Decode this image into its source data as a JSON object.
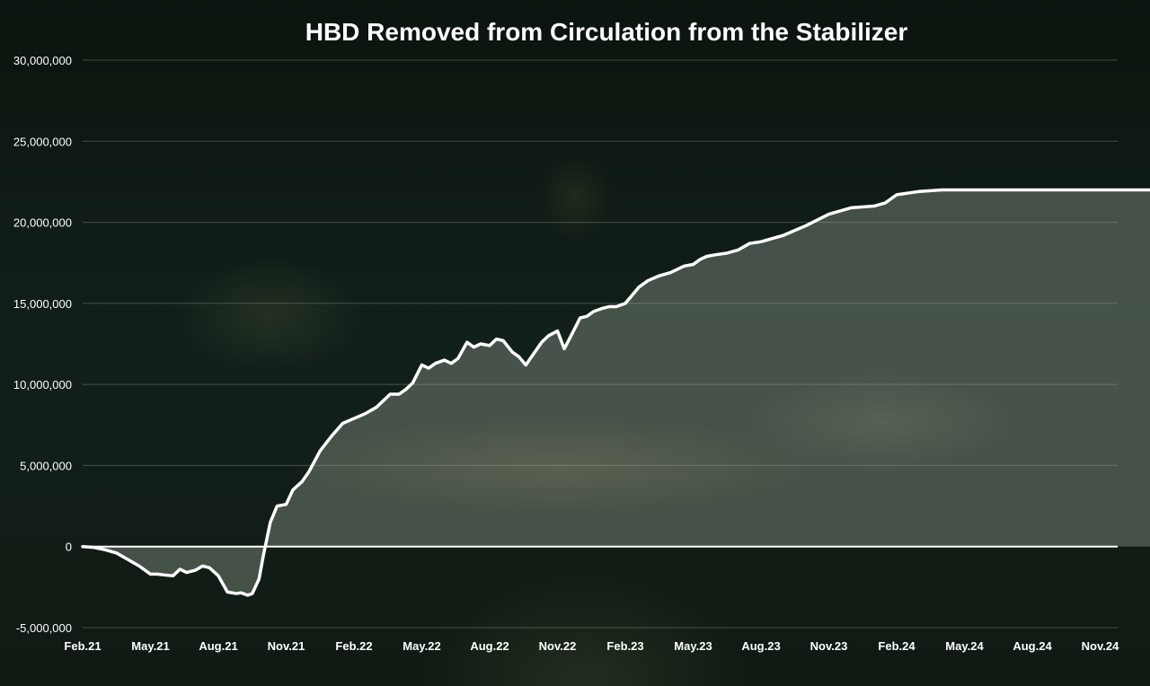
{
  "chart_data": {
    "type": "area",
    "title": "HBD Removed from Circulation from the Stabilizer",
    "xlabel": "",
    "ylabel": "",
    "ylim": [
      -5000000,
      30000000
    ],
    "yticks": [
      -5000000,
      0,
      5000000,
      10000000,
      15000000,
      20000000,
      25000000,
      30000000
    ],
    "ytick_labels": [
      "-5,000,000",
      "0",
      "5,000,000",
      "10,000,000",
      "15,000,000",
      "20,000,000",
      "25,000,000",
      "30,000,000"
    ],
    "xtick_labels": [
      "Feb.21",
      "May.21",
      "Aug.21",
      "Nov.21",
      "Feb.22",
      "May.22",
      "Aug.22",
      "Nov.22",
      "Feb.23",
      "May.23",
      "Aug.23",
      "Nov.23",
      "Feb.24",
      "May.24",
      "Aug.24",
      "Nov.24"
    ],
    "grid": true,
    "legend": "none",
    "series": [
      {
        "color": "#ffffff",
        "fill": "#b8c2b0",
        "x": [
          0,
          0.5,
          1.0,
          1.5,
          2.0,
          2.5,
          3.0,
          3.3,
          3.6,
          4.0,
          4.3,
          4.6,
          5.0,
          5.3,
          5.6,
          6.0,
          6.4,
          6.8,
          7.0,
          7.3,
          7.5,
          7.8,
          8.0,
          8.3,
          8.6,
          9.0,
          9.3,
          9.7,
          10.0,
          10.5,
          11.0,
          11.5,
          12.0,
          12.5,
          13.0,
          13.3,
          13.6,
          14.0,
          14.3,
          14.6,
          15.0,
          15.3,
          15.6,
          16.0,
          16.3,
          16.6,
          17.0,
          17.3,
          17.6,
          18.0,
          18.3,
          18.6,
          19.0,
          19.3,
          19.6,
          20.0,
          20.3,
          20.6,
          21.0,
          21.3,
          21.6,
          22.0,
          22.3,
          22.6,
          23.0,
          23.3,
          23.6,
          24.0,
          24.3,
          24.6,
          25.0,
          25.5,
          26.0,
          26.3,
          26.6,
          27.0,
          27.3,
          27.6,
          28.0,
          28.5,
          29.0,
          29.5,
          30.0,
          31.0,
          32.0,
          33.0,
          34.0,
          35.0,
          35.5,
          36.0,
          37.0,
          38.0,
          39.0,
          40.0,
          41.0,
          42.0,
          43.0,
          44.0,
          45.0,
          45.5,
          46.0,
          47.0,
          47.5
        ],
        "values": [
          0,
          -50000,
          -200000,
          -400000,
          -800000,
          -1200000,
          -1700000,
          -1700000,
          -1750000,
          -1800000,
          -1400000,
          -1600000,
          -1450000,
          -1200000,
          -1300000,
          -1800000,
          -2800000,
          -2900000,
          -2850000,
          -3000000,
          -2900000,
          -2000000,
          -500000,
          1500000,
          2500000,
          2600000,
          3500000,
          4000000,
          4600000,
          5900000,
          6800000,
          7600000,
          7900000,
          8200000,
          8600000,
          9000000,
          9400000,
          9400000,
          9700000,
          10100000,
          11200000,
          11000000,
          11300000,
          11500000,
          11300000,
          11600000,
          12600000,
          12300000,
          12500000,
          12400000,
          12800000,
          12700000,
          12000000,
          11700000,
          11200000,
          12000000,
          12600000,
          13000000,
          13300000,
          12200000,
          13000000,
          14100000,
          14200000,
          14500000,
          14700000,
          14800000,
          14800000,
          15000000,
          15500000,
          16000000,
          16400000,
          16700000,
          16900000,
          17100000,
          17300000,
          17400000,
          17700000,
          17900000,
          18000000,
          18100000,
          18300000,
          18700000,
          18800000,
          19200000,
          19800000,
          20500000,
          20900000,
          21000000,
          21200000,
          21700000,
          21900000,
          22000000,
          22000000,
          22000000,
          22000000,
          22000000,
          22000000,
          22000000,
          22000000,
          22000000,
          22000000,
          22000000,
          22000000
        ]
      }
    ]
  }
}
